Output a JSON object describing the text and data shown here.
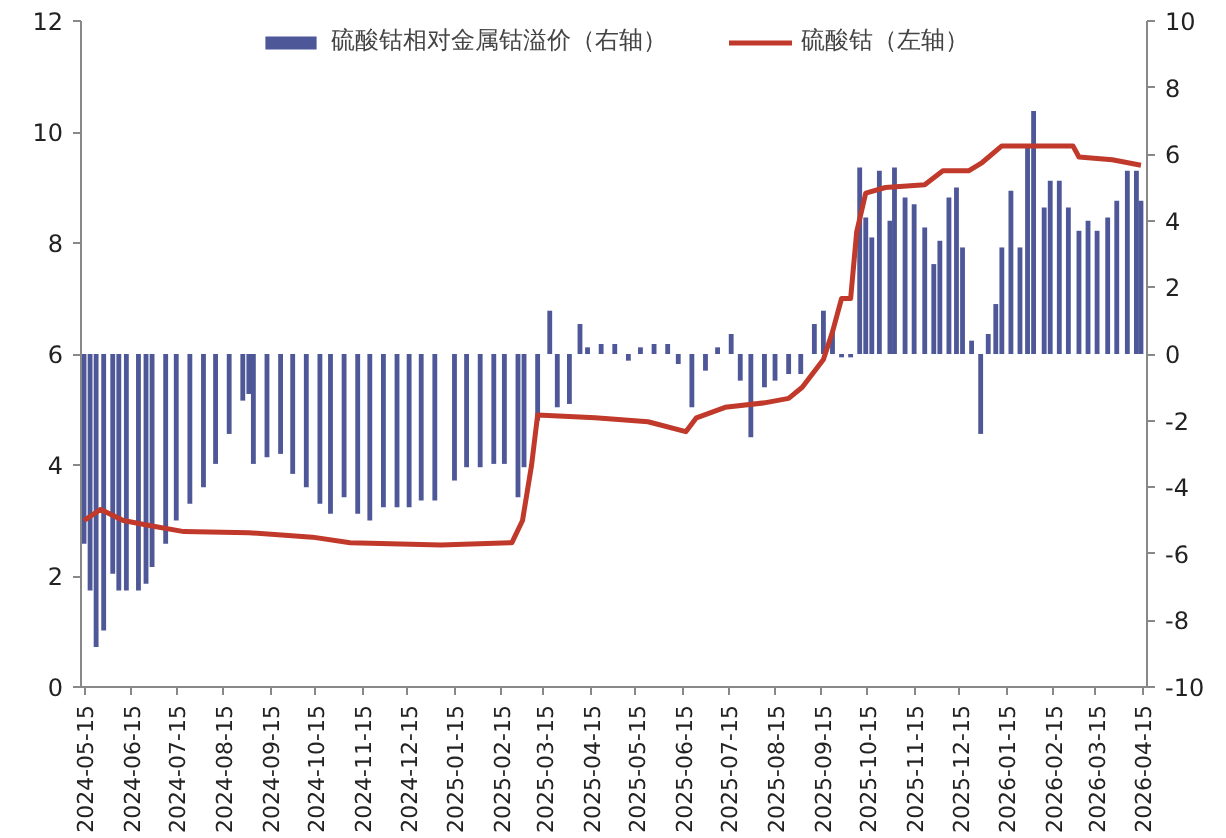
{
  "chart_data": {
    "type": "bar",
    "legend": "top",
    "grid": false,
    "xlim": [
      "2024-05-13",
      "2026-04-18"
    ],
    "xticks": [
      "2024-05-15",
      "2024-06-15",
      "2024-07-15",
      "2024-08-15",
      "2024-09-15",
      "2024-10-15",
      "2024-11-15",
      "2024-12-15",
      "2025-01-15",
      "2025-02-15",
      "2025-03-15",
      "2025-04-15",
      "2025-05-15",
      "2025-06-15",
      "2025-07-15",
      "2025-08-15",
      "2025-09-15",
      "2025-10-15",
      "2025-11-15",
      "2025-12-15",
      "2026-01-15",
      "2026-02-15",
      "2026-03-15",
      "2026-04-15"
    ],
    "ylim": [
      0,
      12
    ],
    "yticks": [
      0,
      2,
      4,
      6,
      8,
      10,
      12
    ],
    "y2lim": [
      -10,
      10
    ],
    "y2ticks": [
      -10,
      -8,
      -6,
      -4,
      -2,
      0,
      2,
      4,
      6,
      8,
      10
    ],
    "series": [
      {
        "name": "硫酸钴相对金属钴溢价（右轴）",
        "axis": "y2",
        "color": "#4e5797",
        "x": [
          "2024-05-15",
          "2024-05-19",
          "2024-05-23",
          "2024-05-28",
          "2024-06-03",
          "2024-06-07",
          "2024-06-12",
          "2024-06-20",
          "2024-06-25",
          "2024-06-29",
          "2024-07-08",
          "2024-07-15",
          "2024-07-24",
          "2024-08-02",
          "2024-08-10",
          "2024-08-19",
          "2024-08-28",
          "2024-09-01",
          "2024-09-04",
          "2024-09-13",
          "2024-09-22",
          "2024-09-30",
          "2024-10-09",
          "2024-10-18",
          "2024-10-25",
          "2024-11-03",
          "2024-11-12",
          "2024-11-20",
          "2024-11-29",
          "2024-12-08",
          "2024-12-16",
          "2024-12-24",
          "2025-01-02",
          "2025-01-15",
          "2025-01-23",
          "2025-02-01",
          "2025-02-10",
          "2025-02-17",
          "2025-02-26",
          "2025-03-02",
          "2025-03-11",
          "2025-03-19",
          "2025-03-24",
          "2025-04-01",
          "2025-04-08",
          "2025-04-13",
          "2025-04-22",
          "2025-05-01",
          "2025-05-10",
          "2025-05-18",
          "2025-05-27",
          "2025-06-05",
          "2025-06-12",
          "2025-06-21",
          "2025-06-30",
          "2025-07-08",
          "2025-07-17",
          "2025-07-23",
          "2025-07-30",
          "2025-08-08",
          "2025-08-15",
          "2025-08-24",
          "2025-09-01",
          "2025-09-10",
          "2025-09-16",
          "2025-09-22",
          "2025-09-28",
          "2025-10-04",
          "2025-10-10",
          "2025-10-14",
          "2025-10-18",
          "2025-10-23",
          "2025-10-30",
          "2025-11-02",
          "2025-11-09",
          "2025-11-15",
          "2025-11-22",
          "2025-11-28",
          "2025-12-02",
          "2025-12-08",
          "2025-12-13",
          "2025-12-17",
          "2025-12-23",
          "2025-12-29",
          "2026-01-03",
          "2026-01-08",
          "2026-01-12",
          "2026-01-18",
          "2026-01-24",
          "2026-01-29",
          "2026-02-02",
          "2026-02-09",
          "2026-02-13",
          "2026-02-19",
          "2026-02-25",
          "2026-03-04",
          "2026-03-10",
          "2026-03-16",
          "2026-03-23",
          "2026-03-29",
          "2026-04-05",
          "2026-04-11",
          "2026-04-14"
        ],
        "values": [
          -5.7,
          -7.1,
          -8.8,
          -8.3,
          -6.6,
          -7.1,
          -7.1,
          -7.1,
          -6.9,
          -6.4,
          -5.7,
          -5.0,
          -4.5,
          -4.0,
          -3.3,
          -2.4,
          -1.4,
          -1.2,
          -3.3,
          -3.1,
          -3.0,
          -3.6,
          -4.0,
          -4.5,
          -4.8,
          -4.3,
          -4.8,
          -5.0,
          -4.6,
          -4.6,
          -4.6,
          -4.4,
          -4.4,
          -3.8,
          -3.4,
          -3.4,
          -3.3,
          -3.3,
          -4.3,
          -3.4,
          -2.0,
          1.3,
          -1.6,
          -1.5,
          0.9,
          0.2,
          0.3,
          0.3,
          -0.2,
          0.2,
          0.3,
          0.3,
          -0.3,
          -1.6,
          -0.5,
          0.2,
          0.6,
          -0.8,
          -2.5,
          -1.0,
          -0.8,
          -0.6,
          -0.6,
          0.9,
          1.3,
          0.7,
          -0.1,
          -0.1,
          5.6,
          4.1,
          3.5,
          5.5,
          4.0,
          5.6,
          4.7,
          4.5,
          3.8,
          2.7,
          3.4,
          4.7,
          5.0,
          3.2,
          0.4,
          -2.4,
          0.6,
          1.5,
          3.2,
          4.9,
          3.2,
          6.3,
          7.3,
          4.4,
          5.2,
          5.2,
          4.4,
          3.7,
          4.0,
          3.7,
          4.1,
          4.6,
          5.5,
          5.5,
          4.6
        ]
      },
      {
        "name": "硫酸钴（左轴）",
        "type": "line",
        "color": "#c0392b",
        "line_style": "solid",
        "marker": "none",
        "x": [
          "2024-05-15",
          "2024-05-26",
          "2024-06-10",
          "2024-06-29",
          "2024-07-20",
          "2024-09-01",
          "2024-10-13",
          "2024-11-07",
          "2025-01-06",
          "2025-02-22",
          "2025-03-01",
          "2025-03-07",
          "2025-03-11",
          "2025-04-18",
          "2025-05-23",
          "2025-06-17",
          "2025-06-24",
          "2025-07-13",
          "2025-08-08",
          "2025-08-24",
          "2025-09-02",
          "2025-09-16",
          "2025-09-22",
          "2025-09-28",
          "2025-10-04",
          "2025-10-08",
          "2025-10-14",
          "2025-10-27",
          "2025-11-22",
          "2025-12-04",
          "2025-12-21",
          "2025-12-30",
          "2026-01-12",
          "2026-02-28",
          "2026-03-04",
          "2026-03-26",
          "2026-04-14"
        ],
        "values": [
          3.0,
          3.2,
          3.0,
          2.9,
          2.8,
          2.78,
          2.7,
          2.6,
          2.56,
          2.6,
          3.0,
          4.0,
          4.9,
          4.85,
          4.78,
          4.6,
          4.85,
          5.04,
          5.12,
          5.2,
          5.4,
          5.9,
          6.4,
          7.0,
          7.0,
          8.2,
          8.9,
          9.0,
          9.05,
          9.3,
          9.3,
          9.45,
          9.75,
          9.75,
          9.55,
          9.5,
          9.4
        ]
      }
    ]
  }
}
